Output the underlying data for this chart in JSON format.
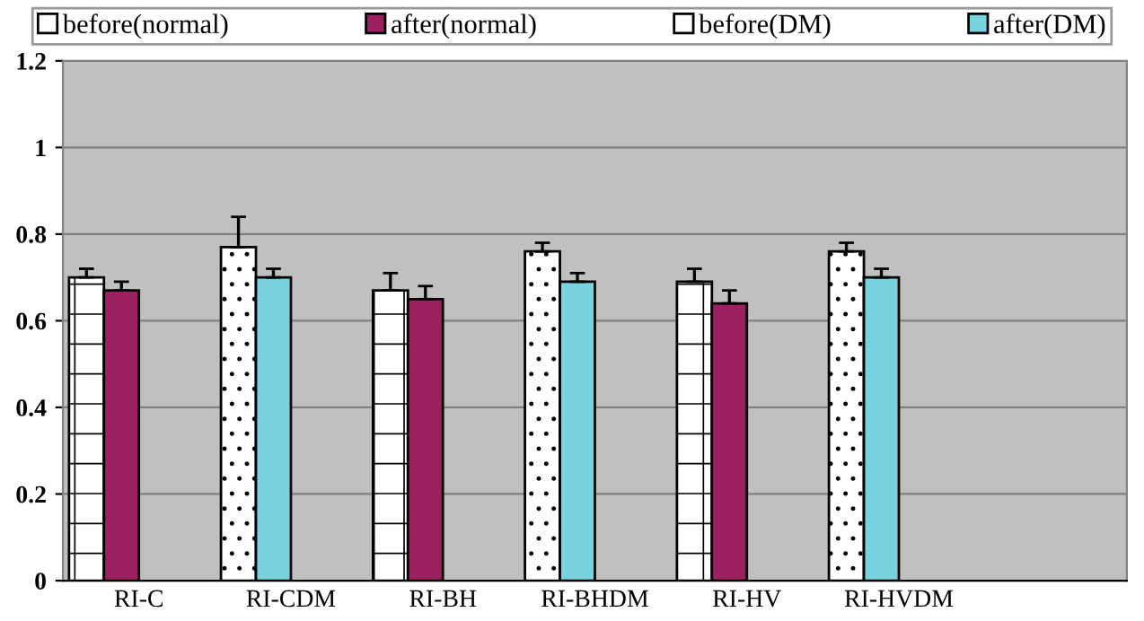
{
  "chart_data": {
    "type": "bar",
    "categories": [
      "RI-C",
      "RI-CDM",
      "RI-BH",
      "RI-BHDM",
      "RI-HV",
      "RI-HVDM",
      null
    ],
    "series": [
      {
        "name": "before(normal)",
        "color": "#ffffff",
        "values": [
          0.7,
          null,
          0.67,
          null,
          0.69,
          null,
          null
        ],
        "errors": [
          [
            0.7,
            0.72
          ],
          null,
          [
            0.67,
            0.71
          ],
          null,
          [
            0.69,
            0.72
          ],
          null,
          null
        ]
      },
      {
        "name": "after(normal)",
        "color": "#9b2160",
        "values": [
          0.67,
          null,
          0.65,
          null,
          0.64,
          null,
          null
        ],
        "errors": [
          [
            0.67,
            0.69
          ],
          null,
          [
            0.65,
            0.68
          ],
          null,
          [
            0.64,
            0.67
          ],
          null,
          null
        ]
      },
      {
        "name": "before(DM)",
        "color": "#ffffff",
        "values": [
          null,
          0.77,
          null,
          0.76,
          null,
          0.76,
          null
        ],
        "errors": [
          null,
          [
            0.77,
            0.84
          ],
          null,
          [
            0.76,
            0.78
          ],
          null,
          [
            0.76,
            0.78
          ],
          null
        ]
      },
      {
        "name": "after(DM)",
        "color": "#79d3de",
        "values": [
          null,
          0.7,
          null,
          0.69,
          null,
          0.7,
          null
        ],
        "errors": [
          null,
          [
            0.7,
            0.72
          ],
          null,
          [
            0.69,
            0.71
          ],
          null,
          [
            0.7,
            0.72
          ],
          null
        ]
      }
    ],
    "ylim": [
      0,
      1.2
    ],
    "yticks": [
      0,
      0.2,
      0.4,
      0.6,
      0.8,
      1,
      1.2
    ],
    "grid": "y",
    "legend": "top"
  }
}
